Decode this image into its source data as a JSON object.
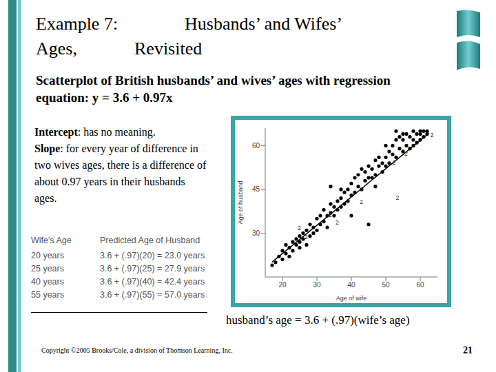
{
  "slide": {
    "title": [
      "Example 7:",
      "Husbands’ and Wifes’",
      "Ages,",
      "Revisited"
    ],
    "subtitle": "Scatterplot of British husbands’ and wives’ ages with regression equation:  y = 3.6 + 0.97x",
    "notes": [
      {
        "term": "Intercept",
        "text": ": has no meaning."
      },
      {
        "term": "Slope",
        "text": ": for every year of difference in two wives ages, there is a difference of about 0.97 years in their husbands ages."
      }
    ],
    "table": {
      "header": [
        "Wife's Age",
        "Predicted Age of Husband"
      ],
      "rows": [
        [
          "20 years",
          "3.6 + (.97)(20) = 23.0 years"
        ],
        [
          "25 years",
          "3.6 + (.97)(25) = 27.9 years"
        ],
        [
          "40 years",
          "3.6 + (.97)(40) = 42.4 years"
        ],
        [
          "55 years",
          "3.6 + (.97)(55) = 57.0 years"
        ]
      ]
    },
    "caption": "husband’s age = 3.6 + (.97)(wife’s age)",
    "copyright": "Copyright ©2005 Brooks/Cole, a division of Thomson Learning, Inc.",
    "page": "21"
  },
  "chart_data": {
    "type": "scatter",
    "x_label": "Age of wife",
    "y_label": "Age of husband",
    "color": "#000000",
    "marker": "circle",
    "grid": false,
    "xlim": [
      15,
      65
    ],
    "ylim": [
      15,
      66
    ],
    "xticks": [
      20,
      30,
      40,
      50,
      60
    ],
    "yticks": [
      30,
      45,
      60
    ],
    "x": [
      17,
      18,
      19,
      20,
      20,
      21,
      21,
      22,
      22,
      23,
      23,
      24,
      24,
      25,
      25,
      25,
      26,
      26,
      27,
      27,
      28,
      28,
      29,
      29,
      30,
      30,
      31,
      31,
      32,
      32,
      33,
      33,
      34,
      34,
      35,
      35,
      36,
      36,
      37,
      37,
      38,
      38,
      39,
      39,
      40,
      40,
      41,
      41,
      42,
      42,
      43,
      43,
      44,
      44,
      45,
      45,
      46,
      46,
      47,
      47,
      48,
      48,
      49,
      49,
      50,
      50,
      51,
      51,
      52,
      52,
      53,
      53,
      54,
      54,
      55,
      55,
      56,
      56,
      57,
      57,
      58,
      58,
      59,
      59,
      60,
      60,
      61,
      61,
      62,
      62,
      45,
      34,
      40,
      50,
      55,
      58,
      60,
      37,
      47,
      53
    ],
    "y": [
      19,
      20,
      22,
      21,
      24,
      23,
      26,
      22,
      25,
      27,
      24,
      28,
      26,
      25,
      29,
      27,
      30,
      28,
      26,
      31,
      33,
      29,
      32,
      30,
      31,
      35,
      33,
      36,
      34,
      38,
      36,
      32,
      37,
      40,
      39,
      36,
      41,
      38,
      42,
      39,
      44,
      40,
      45,
      41,
      47,
      43,
      44,
      49,
      46,
      50,
      45,
      52,
      48,
      51,
      49,
      53,
      52,
      49,
      55,
      50,
      53,
      56,
      54,
      51,
      56,
      53,
      58,
      54,
      57,
      60,
      56,
      62,
      59,
      63,
      58,
      62,
      60,
      64,
      63,
      59,
      62,
      65,
      61,
      64,
      64,
      62,
      65,
      63,
      65,
      64,
      33,
      46,
      36,
      60,
      64,
      60,
      65,
      45,
      46,
      65
    ],
    "regression": {
      "intercept": 3.6,
      "slope": 0.97
    },
    "annotations": [
      {
        "x": 62.5,
        "y": 63.5,
        "text": "2"
      },
      {
        "x": 55,
        "y": 57,
        "text": "2"
      },
      {
        "x": 51.5,
        "y": 54,
        "text": "2"
      },
      {
        "x": 52.5,
        "y": 42,
        "text": "2"
      },
      {
        "x": 42,
        "y": 40.5,
        "text": "2"
      },
      {
        "x": 33,
        "y": 36,
        "text": "2"
      },
      {
        "x": 35,
        "y": 33.5,
        "text": "2"
      },
      {
        "x": 24,
        "y": 31.5,
        "text": "2"
      },
      {
        "x": 26,
        "y": 28.5,
        "text": "2"
      }
    ]
  }
}
